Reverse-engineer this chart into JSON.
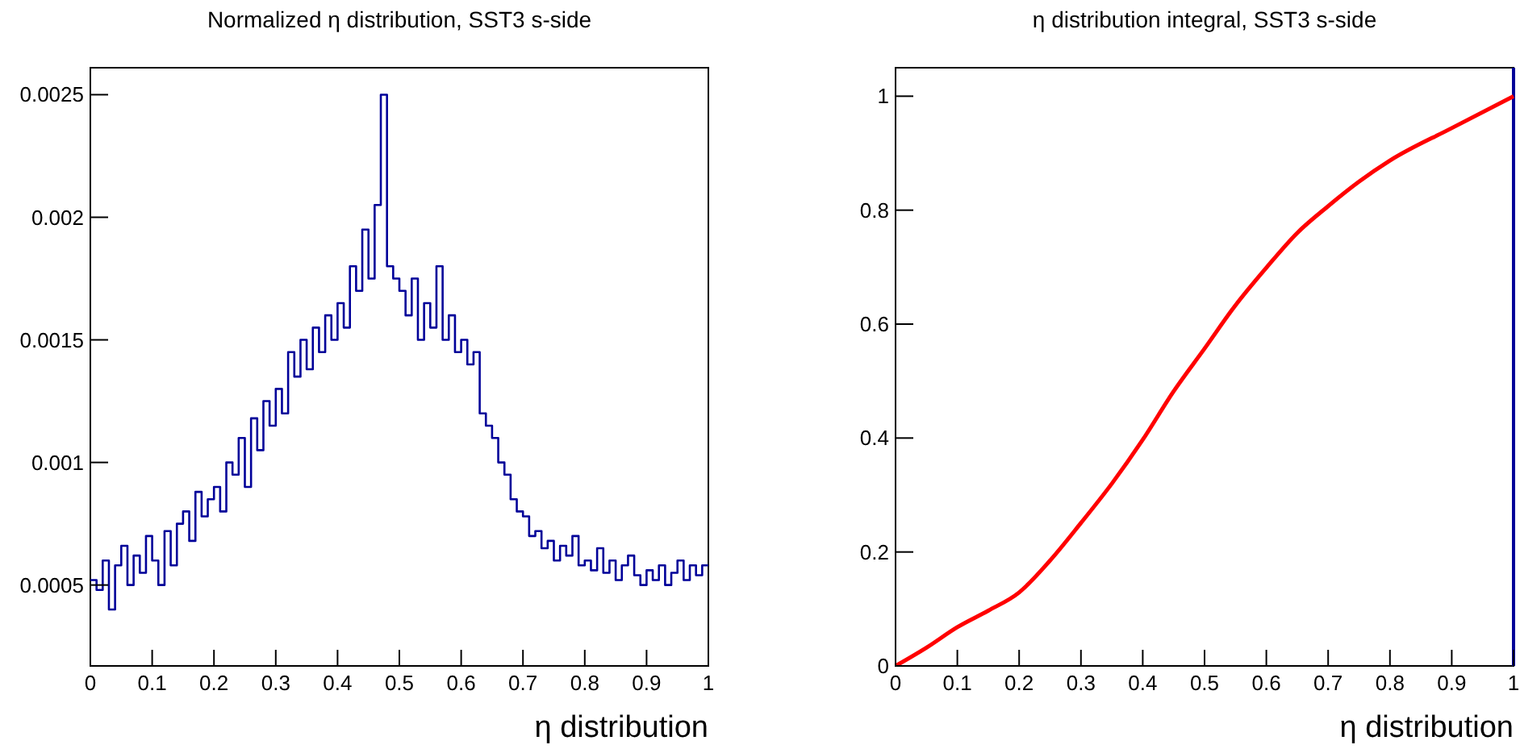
{
  "chart_data": [
    {
      "type": "step",
      "title": "Normalized η distribution, SST3 s-side",
      "xlabel": "η distribution",
      "color": "#000099",
      "x": [
        0,
        0.01,
        0.02,
        0.03,
        0.04,
        0.05,
        0.06,
        0.07,
        0.08,
        0.09,
        0.1,
        0.11,
        0.12,
        0.13,
        0.14,
        0.15,
        0.16,
        0.17,
        0.18,
        0.19,
        0.2,
        0.21,
        0.22,
        0.23,
        0.24,
        0.25,
        0.26,
        0.27,
        0.28,
        0.29,
        0.3,
        0.31,
        0.32,
        0.33,
        0.34,
        0.35,
        0.36,
        0.37,
        0.38,
        0.39,
        0.4,
        0.41,
        0.42,
        0.43,
        0.44,
        0.45,
        0.46,
        0.47,
        0.48,
        0.49,
        0.5,
        0.51,
        0.52,
        0.53,
        0.54,
        0.55,
        0.56,
        0.57,
        0.58,
        0.59,
        0.6,
        0.61,
        0.62,
        0.63,
        0.64,
        0.65,
        0.66,
        0.67,
        0.68,
        0.69,
        0.7,
        0.71,
        0.72,
        0.73,
        0.74,
        0.75,
        0.76,
        0.77,
        0.78,
        0.79,
        0.8,
        0.81,
        0.82,
        0.83,
        0.84,
        0.85,
        0.86,
        0.87,
        0.88,
        0.89,
        0.9,
        0.91,
        0.92,
        0.93,
        0.94,
        0.95,
        0.96,
        0.97,
        0.98,
        0.99,
        1
      ],
      "values": [
        0.00052,
        0.00048,
        0.0006,
        0.0004,
        0.00058,
        0.00066,
        0.0005,
        0.00062,
        0.00055,
        0.0007,
        0.0006,
        0.0005,
        0.00072,
        0.00058,
        0.00075,
        0.0008,
        0.00068,
        0.00088,
        0.00078,
        0.00085,
        0.0009,
        0.0008,
        0.001,
        0.00095,
        0.0011,
        0.0009,
        0.00118,
        0.00105,
        0.00125,
        0.00115,
        0.0013,
        0.0012,
        0.00145,
        0.00135,
        0.0015,
        0.00138,
        0.00155,
        0.00145,
        0.0016,
        0.0015,
        0.00165,
        0.00155,
        0.0018,
        0.0017,
        0.00195,
        0.00175,
        0.00205,
        0.0025,
        0.0018,
        0.00175,
        0.0017,
        0.0016,
        0.00175,
        0.0015,
        0.00165,
        0.00155,
        0.0018,
        0.0015,
        0.0016,
        0.00145,
        0.0015,
        0.0014,
        0.00145,
        0.0012,
        0.00115,
        0.0011,
        0.001,
        0.00095,
        0.00085,
        0.0008,
        0.00078,
        0.0007,
        0.00072,
        0.00065,
        0.00068,
        0.0006,
        0.00066,
        0.00062,
        0.0007,
        0.00058,
        0.0006,
        0.00056,
        0.00065,
        0.00055,
        0.0006,
        0.00052,
        0.00058,
        0.00062,
        0.00054,
        0.0005,
        0.00056,
        0.00052,
        0.00058,
        0.0005,
        0.00055,
        0.0006,
        0.00052,
        0.00058,
        0.00054,
        0.00058,
        0.00058
      ],
      "xlim": [
        0,
        1
      ],
      "xticks": [
        0,
        0.1,
        0.2,
        0.3,
        0.4,
        0.5,
        0.6,
        0.7,
        0.8,
        0.9,
        1
      ],
      "ylim": [
        0.00017,
        0.00261
      ],
      "yticks": [
        0.0005,
        0.001,
        0.0015,
        0.002,
        0.0025
      ]
    },
    {
      "type": "line",
      "title": "η distribution integral, SST3 s-side",
      "xlabel": "η distribution",
      "series": [
        {
          "color": "#ff0000",
          "x": [
            0,
            0.05,
            0.1,
            0.15,
            0.2,
            0.25,
            0.3,
            0.35,
            0.4,
            0.45,
            0.5,
            0.55,
            0.6,
            0.65,
            0.7,
            0.75,
            0.8,
            0.9,
            1
          ],
          "values": [
            0,
            0.032,
            0.068,
            0.097,
            0.129,
            0.185,
            0.251,
            0.32,
            0.397,
            0.482,
            0.557,
            0.633,
            0.699,
            0.76,
            0.807,
            0.85,
            0.887,
            0.944,
            1
          ]
        }
      ],
      "xlim": [
        0,
        1
      ],
      "xticks": [
        0,
        0.1,
        0.2,
        0.3,
        0.4,
        0.5,
        0.6,
        0.7,
        0.8,
        0.9,
        1
      ],
      "ylim": [
        0,
        1.05
      ],
      "yticks": [
        0,
        0.2,
        0.4,
        0.6,
        0.8,
        1
      ],
      "ref_lines": [
        {
          "axis": "x",
          "value": 1,
          "color": "#000099"
        }
      ]
    }
  ]
}
